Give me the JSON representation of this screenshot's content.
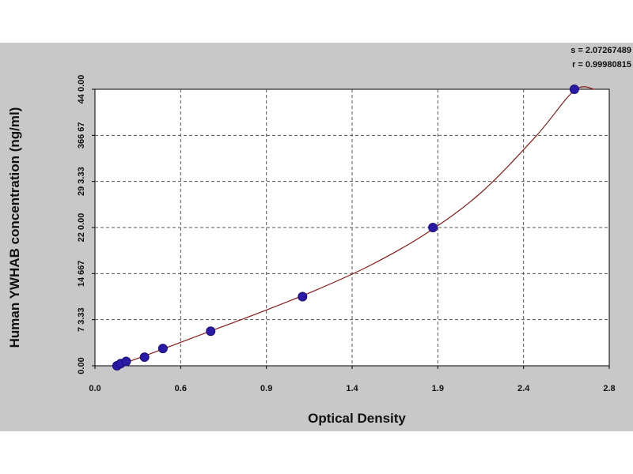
{
  "stats": {
    "s": "s = 2.07267489",
    "r": "r = 0.99980815"
  },
  "chart_data": {
    "type": "scatter",
    "xlabel": "Optical Density",
    "ylabel": "Human YWHAB concentration (ng/ml)",
    "xlim": [
      0.0,
      2.8
    ],
    "ylim": [
      0.0,
      440.0
    ],
    "x_ticks": [
      "0.0",
      "0.6",
      "0.9",
      "1.4",
      "1.9",
      "2.4",
      "2.8"
    ],
    "y_ticks": [
      "0.00",
      "7 3.33",
      "14 667",
      "22 0.00",
      "29 3.33",
      "366 67",
      "44 0.00"
    ],
    "grid": true,
    "series": [
      {
        "points": [
          {
            "x": 0.12,
            "y": 0.0
          },
          {
            "x": 0.14,
            "y": 3.44
          },
          {
            "x": 0.17,
            "y": 6.88
          },
          {
            "x": 0.27,
            "y": 13.75
          },
          {
            "x": 0.37,
            "y": 27.5
          },
          {
            "x": 0.63,
            "y": 55.0
          },
          {
            "x": 1.13,
            "y": 110.0
          },
          {
            "x": 1.84,
            "y": 220.0
          },
          {
            "x": 2.61,
            "y": 440.0
          }
        ],
        "color": "#2a1aa8"
      }
    ],
    "fit_curve": {
      "color": "#8b1a1a",
      "points": [
        {
          "x": 0.12,
          "y": 0.0
        },
        {
          "x": 0.3,
          "y": 19.0
        },
        {
          "x": 0.6,
          "y": 52.0
        },
        {
          "x": 0.9,
          "y": 85.0
        },
        {
          "x": 1.2,
          "y": 120.0
        },
        {
          "x": 1.5,
          "y": 160.0
        },
        {
          "x": 1.8,
          "y": 210.0
        },
        {
          "x": 2.1,
          "y": 275.0
        },
        {
          "x": 2.4,
          "y": 365.0
        },
        {
          "x": 2.61,
          "y": 438.0
        },
        {
          "x": 2.72,
          "y": 440.0
        }
      ]
    }
  }
}
